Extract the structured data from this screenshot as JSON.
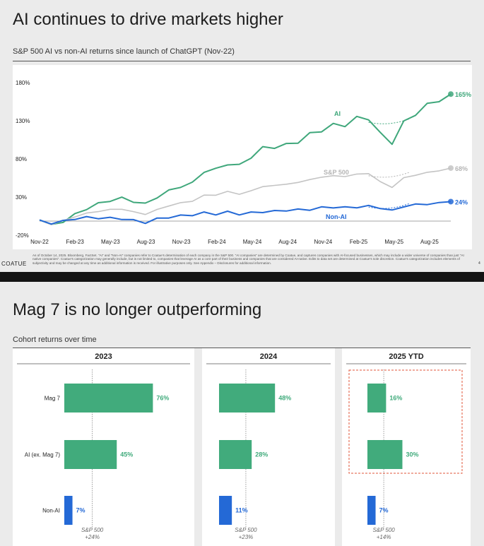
{
  "slide1": {
    "title": "AI continues to drive markets higher",
    "subtitle": "S&P 500 AI vs non-AI returns since launch of ChatGPT (Nov-22)",
    "footnote": "As of October 14, 2025. Bloomberg, FactSet. \"AI\" and \"Non-AI\" companies refer to Coatue's determination of each company in the S&P 500. \"AI companies\" are determined by Coatue, and captures companies with AI-focused businesses, which may include a wider universe of companies than just \"AI native companies\". Coatue's categorization may generally include, but is not limited to, companies that leverage AI as a core part of their business and companies that are considered AI-native. Edits to data set are determined at Coatue's sole discretion. Coatue's categorization includes elements of subjectivity and may be changed at any time as additional information is received. For illustrative purposes only. See Appendix – Disclosures for additional information.",
    "brand": "COATUE",
    "page_number": "4"
  },
  "slide2": {
    "title": "Mag 7 is no longer outperforming",
    "subtitle": "Cohort returns over time"
  },
  "colors": {
    "ai": "#3fa77b",
    "sp500": "#c4c4c4",
    "nonai": "#2469d6",
    "bar_green": "#41ab7c",
    "bar_blue": "#2469d6",
    "highlight": "#e0553a"
  },
  "chart_data": [
    {
      "type": "line",
      "title": "S&P 500 AI vs non-AI returns since launch of ChatGPT (Nov-22)",
      "x_ticks": [
        "Nov-22",
        "Feb-23",
        "May-23",
        "Aug-23",
        "Nov-23",
        "Feb-24",
        "May-24",
        "Aug-24",
        "Nov-24",
        "Feb-25",
        "May-25",
        "Aug-25"
      ],
      "y_ticks": [
        "180%",
        "130%",
        "80%",
        "30%",
        "-20%"
      ],
      "ylim": [
        -20,
        180
      ],
      "unit": "%",
      "series": [
        {
          "name": "AI",
          "end_label": "165%",
          "x": [
            0,
            1,
            2,
            3,
            4,
            5,
            6,
            7,
            8,
            9,
            10,
            11,
            12,
            13,
            14,
            15,
            16,
            17,
            18,
            19,
            20,
            21,
            22,
            23,
            24,
            25,
            26,
            27,
            28,
            29,
            30,
            31,
            32,
            33,
            34,
            35
          ],
          "values": [
            0,
            -6,
            -3,
            8,
            14,
            22,
            25,
            29,
            24,
            21,
            30,
            38,
            44,
            48,
            64,
            66,
            74,
            71,
            83,
            94,
            96,
            98,
            103,
            112,
            118,
            124,
            125,
            133,
            134,
            112,
            102,
            127,
            140,
            150,
            158,
            165
          ]
        },
        {
          "name": "S&P 500",
          "end_label": "68%",
          "x": [
            0,
            1,
            2,
            3,
            4,
            5,
            6,
            7,
            8,
            9,
            10,
            11,
            12,
            13,
            14,
            15,
            16,
            17,
            18,
            19,
            20,
            21,
            22,
            23,
            24,
            25,
            26,
            27,
            28,
            29,
            30,
            31,
            32,
            33,
            34,
            35
          ],
          "values": [
            0,
            -5,
            -2,
            5,
            8,
            12,
            13,
            15,
            10,
            8,
            13,
            19,
            22,
            25,
            32,
            33,
            37,
            34,
            38,
            44,
            45,
            47,
            49,
            53,
            56,
            58,
            57,
            60,
            61,
            50,
            43,
            55,
            59,
            62,
            65,
            68
          ]
        },
        {
          "name": "Non-AI",
          "end_label": "24%",
          "x": [
            0,
            1,
            2,
            3,
            4,
            5,
            6,
            7,
            8,
            9,
            10,
            11,
            12,
            13,
            14,
            15,
            16,
            17,
            18,
            19,
            20,
            21,
            22,
            23,
            24,
            25,
            26,
            27,
            28,
            29,
            30,
            31,
            32,
            33,
            34,
            35
          ],
          "values": [
            0,
            -4,
            -2,
            2,
            3,
            3,
            2,
            2,
            -1,
            -3,
            1,
            4,
            5,
            7,
            9,
            8,
            10,
            8,
            9,
            11,
            11,
            13,
            13,
            14,
            16,
            17,
            16,
            17,
            18,
            16,
            12,
            18,
            20,
            21,
            22,
            24
          ]
        }
      ]
    },
    {
      "type": "bar",
      "orientation": "horizontal",
      "categories": [
        "Mag 7",
        "AI (ex. Mag 7)",
        "Non-AI"
      ],
      "panels": [
        {
          "title": "2023",
          "values": [
            76,
            45,
            7
          ],
          "labels": [
            "76%",
            "45%",
            "7%"
          ],
          "reference_label": "S&P 500",
          "reference_value_label": "+24%",
          "reference": 24
        },
        {
          "title": "2024",
          "values": [
            48,
            28,
            11
          ],
          "labels": [
            "48%",
            "28%",
            "11%"
          ],
          "reference_label": "S&P 500",
          "reference_value_label": "+23%",
          "reference": 23
        },
        {
          "title": "2025 YTD",
          "values": [
            16,
            30,
            7
          ],
          "labels": [
            "16%",
            "30%",
            "7%"
          ],
          "reference_label": "S&P 500",
          "reference_value_label": "+14%",
          "reference": 14,
          "highlighted": true
        }
      ]
    }
  ]
}
